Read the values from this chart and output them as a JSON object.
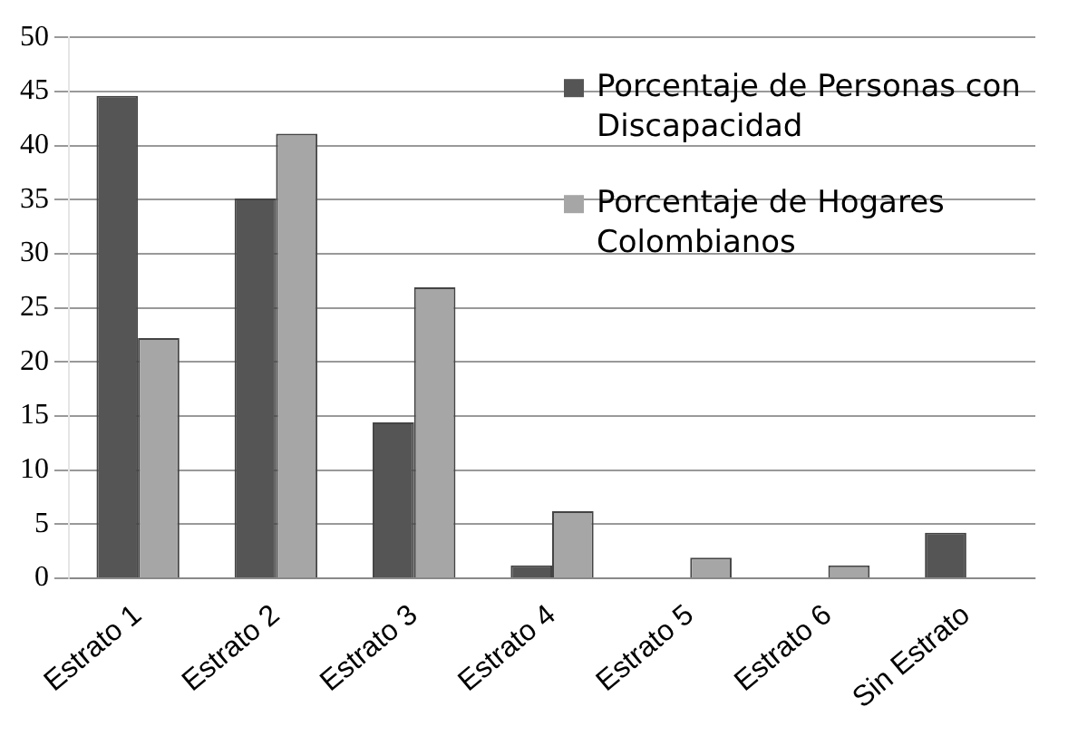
{
  "chart_data": {
    "type": "bar",
    "categories": [
      "Estrato 1",
      "Estrato 2",
      "Estrato 3",
      "Estrato 4",
      "Estrato 5",
      "Estrato 6",
      "Sin Estrato"
    ],
    "series": [
      {
        "name": "Porcentaje de Personas con Discapacidad",
        "color": "#555555",
        "values": [
          44.6,
          35.1,
          14.4,
          1.2,
          null,
          null,
          4.2
        ]
      },
      {
        "name": "Porcentaje de Hogares Colombianos",
        "color": "#a6a6a6",
        "values": [
          22.2,
          41.1,
          26.9,
          6.2,
          1.9,
          1.2,
          null
        ]
      }
    ],
    "ylim": [
      0,
      50
    ],
    "yticks": [
      0,
      5,
      10,
      15,
      20,
      25,
      30,
      35,
      40,
      45,
      50
    ],
    "grid": "y",
    "legend": "top right"
  }
}
